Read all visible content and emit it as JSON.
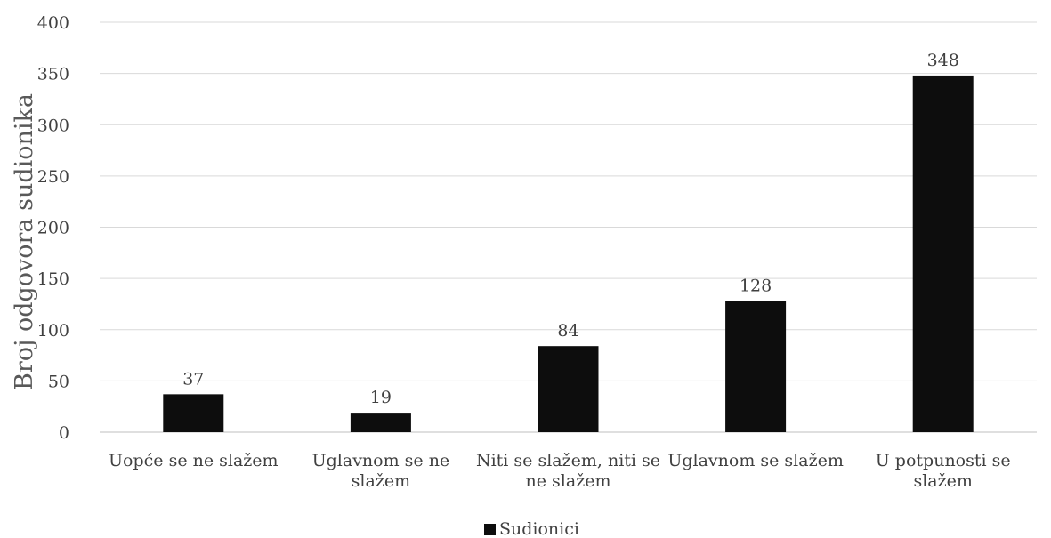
{
  "chart_data": {
    "type": "bar",
    "categories": [
      [
        "Uopće se ne slažem"
      ],
      [
        "Uglavnom se ne",
        "slažem"
      ],
      [
        "Niti se slažem, niti se",
        "ne slažem"
      ],
      [
        "Uglavnom se slažem"
      ],
      [
        "U potpunosti se",
        "slažem"
      ]
    ],
    "series": [
      {
        "name": "Sudionici",
        "values": [
          37,
          19,
          84,
          128,
          348
        ],
        "color": "#0d0d0d"
      }
    ],
    "ylabel": "Broj odgovora sudionika",
    "xlabel": "",
    "ylim": [
      0,
      400
    ],
    "yticks": [
      0,
      50,
      100,
      150,
      200,
      250,
      300,
      350,
      400
    ],
    "data_labels": true,
    "grid": true,
    "legend": "bottom"
  }
}
